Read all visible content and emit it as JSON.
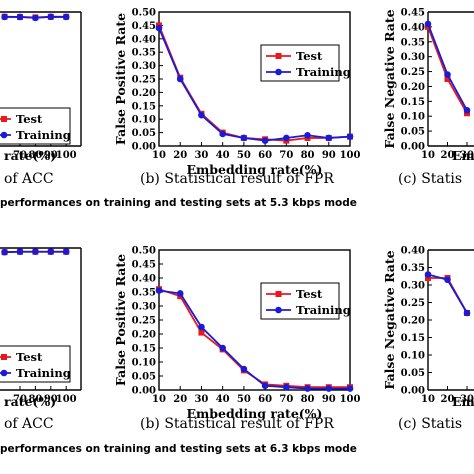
{
  "colors": {
    "test": "#e8191c",
    "training": "#1b1bd6"
  },
  "captions": {
    "row1": "performances on training and testing sets at 5.3 kbps mode",
    "row2": "performances on training and testing sets at 6.3 kbps mode",
    "acc_fragment": "of ACC",
    "fpr": "(b) Statistical result of FPR",
    "fnr_fragment": "(c) Statis",
    "xlabel_left_fragment": "rate(%)",
    "xlabel_right_fragment": "Em"
  },
  "chart_data": [
    {
      "id": "fpr-5.3",
      "type": "line",
      "xlabel": "Embedding rate(%)",
      "ylabel": "False Positive Rate",
      "xlim": [
        10,
        100
      ],
      "ylim": [
        0,
        0.5
      ],
      "xticks": [
        10,
        20,
        30,
        40,
        50,
        60,
        70,
        80,
        90,
        100
      ],
      "yticks": [
        0.0,
        0.05,
        0.1,
        0.15,
        0.2,
        0.25,
        0.3,
        0.35,
        0.4,
        0.45,
        0.5
      ],
      "legend": "top-right",
      "x": [
        10,
        20,
        30,
        40,
        50,
        60,
        70,
        80,
        90,
        100
      ],
      "series": [
        {
          "name": "Test",
          "values": [
            0.45,
            0.255,
            0.12,
            0.05,
            0.03,
            0.025,
            0.02,
            0.03,
            0.03,
            0.035
          ]
        },
        {
          "name": "Training",
          "values": [
            0.44,
            0.25,
            0.115,
            0.045,
            0.03,
            0.02,
            0.03,
            0.04,
            0.03,
            0.035
          ]
        }
      ]
    },
    {
      "id": "fpr-6.3",
      "type": "line",
      "xlabel": "Embedding rate(%)",
      "ylabel": "False Positive Rate",
      "xlim": [
        10,
        100
      ],
      "ylim": [
        0,
        0.5
      ],
      "xticks": [
        10,
        20,
        30,
        40,
        50,
        60,
        70,
        80,
        90,
        100
      ],
      "yticks": [
        0.0,
        0.05,
        0.1,
        0.15,
        0.2,
        0.25,
        0.3,
        0.35,
        0.4,
        0.45,
        0.5
      ],
      "legend": "top-right",
      "x": [
        10,
        20,
        30,
        40,
        50,
        60,
        70,
        80,
        90,
        100
      ],
      "series": [
        {
          "name": "Test",
          "values": [
            0.36,
            0.335,
            0.205,
            0.145,
            0.07,
            0.02,
            0.015,
            0.01,
            0.01,
            0.01
          ]
        },
        {
          "name": "Training",
          "values": [
            0.355,
            0.345,
            0.225,
            0.15,
            0.075,
            0.015,
            0.01,
            0.005,
            0.005,
            0.005
          ]
        }
      ]
    },
    {
      "id": "acc-5.3",
      "type": "line",
      "xticks": [
        70,
        80,
        90,
        100
      ],
      "legend": "bottom-right",
      "x": [
        60,
        70,
        80,
        90,
        100
      ],
      "series": [
        {
          "name": "Test",
          "values": [
            0.986,
            0.983,
            0.98,
            0.985,
            0.985
          ]
        },
        {
          "name": "Training",
          "values": [
            0.984,
            0.984,
            0.976,
            0.985,
            0.984
          ]
        }
      ]
    },
    {
      "id": "acc-6.3",
      "type": "line",
      "xticks": [
        70,
        80,
        90,
        100
      ],
      "legend": "bottom-right",
      "x": [
        60,
        70,
        80,
        90,
        100
      ],
      "series": [
        {
          "name": "Test",
          "values": [
            0.99,
            0.994,
            0.994,
            0.994,
            0.994
          ]
        },
        {
          "name": "Training",
          "values": [
            0.99,
            0.994,
            0.994,
            0.994,
            0.994
          ]
        }
      ]
    },
    {
      "id": "fnr-5.3",
      "type": "line",
      "ylabel": "False Negative Rate",
      "xlim": [
        10,
        100
      ],
      "ylim": [
        0,
        0.45
      ],
      "xticks": [
        10,
        20,
        30
      ],
      "yticks": [
        0.0,
        0.05,
        0.1,
        0.15,
        0.2,
        0.25,
        0.3,
        0.35,
        0.4,
        0.45
      ],
      "x": [
        10,
        20,
        30
      ],
      "series": [
        {
          "name": "Test",
          "values": [
            0.4,
            0.225,
            0.11
          ]
        },
        {
          "name": "Training",
          "values": [
            0.41,
            0.24,
            0.12
          ]
        }
      ]
    },
    {
      "id": "fnr-6.3",
      "type": "line",
      "ylabel": "False Negative Rate",
      "xlim": [
        10,
        100
      ],
      "ylim": [
        0,
        0.4
      ],
      "xticks": [
        10,
        20,
        30
      ],
      "yticks": [
        0.0,
        0.05,
        0.1,
        0.15,
        0.2,
        0.25,
        0.3,
        0.35,
        0.4
      ],
      "x": [
        10,
        20,
        30
      ],
      "series": [
        {
          "name": "Test",
          "values": [
            0.32,
            0.32,
            0.22
          ]
        },
        {
          "name": "Training",
          "values": [
            0.33,
            0.315,
            0.22
          ]
        }
      ]
    }
  ]
}
